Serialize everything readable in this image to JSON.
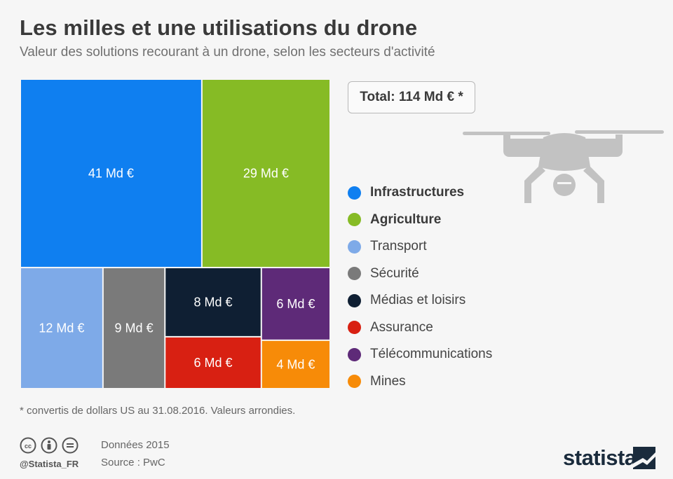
{
  "header": {
    "title": "Les milles et une utilisations du drone",
    "subtitle": "Valeur des solutions recourant à un drone, selon les secteurs d'activité"
  },
  "total_label": "Total: 114 Md € *",
  "chart_data": {
    "type": "treemap",
    "title": "Les milles et une utilisations du drone",
    "subtitle": "Valeur des solutions recourant à un drone, selon les secteurs d'activité",
    "unit": "Md €",
    "total": 114,
    "categories": [
      "Infrastructures",
      "Agriculture",
      "Transport",
      "Sécurité",
      "Médias et loisirs",
      "Assurance",
      "Télécommunications",
      "Mines"
    ],
    "values": [
      41,
      29,
      12,
      9,
      8,
      6,
      6,
      4
    ],
    "labels": [
      "41 Md €",
      "29 Md €",
      "12 Md €",
      "9 Md €",
      "8 Md €",
      "6 Md €",
      "6 Md €",
      "4 Md €"
    ],
    "colors": [
      "#0f7ff0",
      "#86bb25",
      "#7eaae8",
      "#7a7a7a",
      "#0f1f33",
      "#d82012",
      "#5e2a78",
      "#f78b08"
    ],
    "legend_position": "right"
  },
  "legend": [
    {
      "label": "Infrastructures",
      "color": "#0f7ff0",
      "strong": true
    },
    {
      "label": "Agriculture",
      "color": "#86bb25",
      "strong": true
    },
    {
      "label": "Transport",
      "color": "#7eaae8",
      "strong": false
    },
    {
      "label": "Sécurité",
      "color": "#7a7a7a",
      "strong": false
    },
    {
      "label": "Médias et loisirs",
      "color": "#0f1f33",
      "strong": false
    },
    {
      "label": "Assurance",
      "color": "#d82012",
      "strong": false
    },
    {
      "label": "Télécommunications",
      "color": "#5e2a78",
      "strong": false
    },
    {
      "label": "Mines",
      "color": "#f78b08",
      "strong": false
    }
  ],
  "footer": {
    "footnote": "* convertis de dollars US au 31.08.2016. Valeurs arrondies.",
    "handle": "@Statista_FR",
    "data_year": "Données 2015",
    "source": "Source : PwC",
    "brand": "statista"
  },
  "icons": [
    "cc-icon",
    "attribution-icon",
    "no-derivatives-icon",
    "drone-illustration",
    "statista-logo-icon"
  ]
}
